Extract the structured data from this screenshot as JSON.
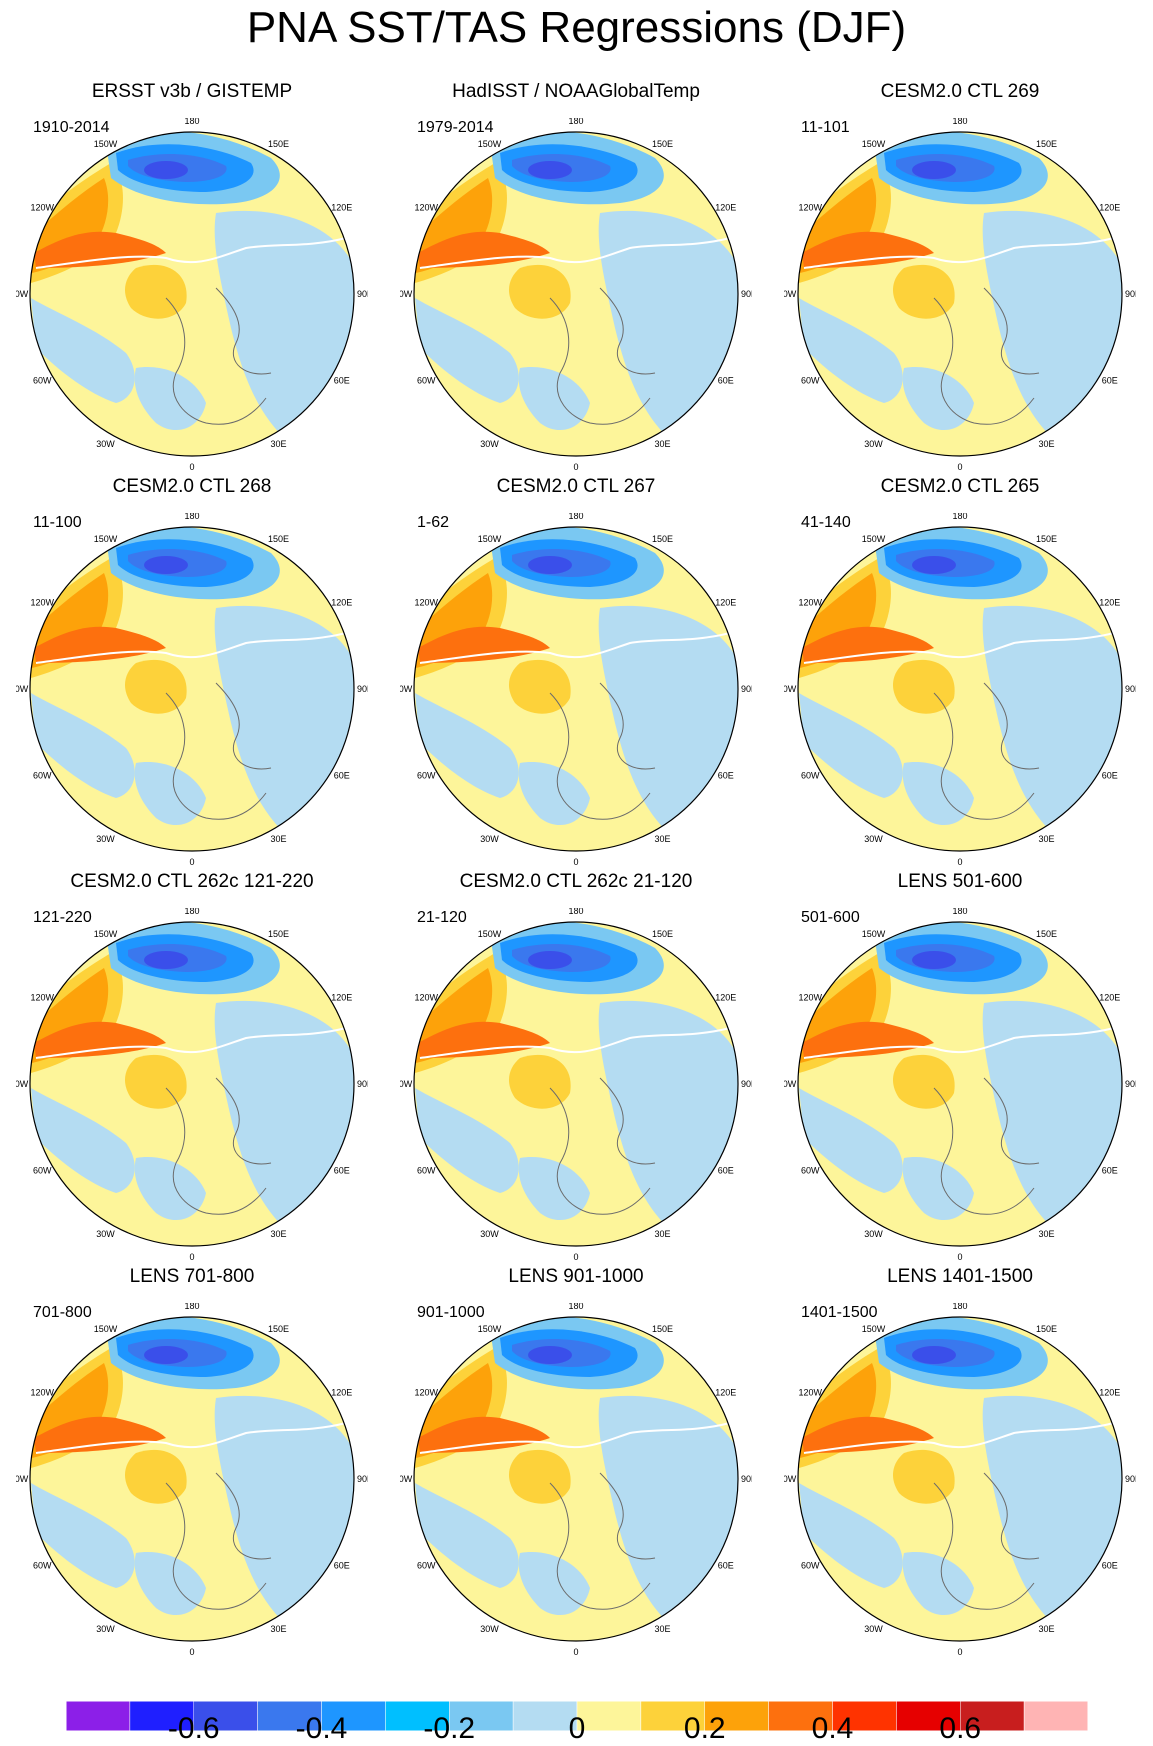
{
  "title": "PNA SST/TAS Regressions (DJF)",
  "longitude_labels": [
    "180",
    "150E",
    "120E",
    "90E",
    "60E",
    "30E",
    "0",
    "30W",
    "60W",
    "90W",
    "120W",
    "150W"
  ],
  "panels": [
    {
      "title": "ERSST v3b / GISTEMP",
      "period": "1910-2014"
    },
    {
      "title": "HadISST / NOAAGlobalTemp",
      "period": "1979-2014"
    },
    {
      "title": "CESM2.0 CTL 269",
      "period": "11-101"
    },
    {
      "title": "CESM2.0 CTL 268",
      "period": "11-100"
    },
    {
      "title": "CESM2.0 CTL 267",
      "period": "1-62"
    },
    {
      "title": "CESM2.0 CTL 265",
      "period": "41-140"
    },
    {
      "title": "CESM2.0 CTL 262c 121-220",
      "period": "121-220"
    },
    {
      "title": "CESM2.0 CTL 262c 21-120",
      "period": "21-120"
    },
    {
      "title": "LENS 501-600",
      "period": "501-600"
    },
    {
      "title": "LENS 701-800",
      "period": "701-800"
    },
    {
      "title": "LENS 901-1000",
      "period": "901-1000"
    },
    {
      "title": "LENS 1401-1500",
      "period": "1401-1500"
    }
  ],
  "colorbar": {
    "colors": [
      "#8c1fe8",
      "#1f1fff",
      "#3a4fea",
      "#3a78ee",
      "#1e96ff",
      "#00bfff",
      "#7ac8f2",
      "#b4dcf2",
      "#fdf59a",
      "#fdd23a",
      "#fda20a",
      "#fd700e",
      "#ff3300",
      "#e60000",
      "#c81e1e",
      "#ffb4b4"
    ],
    "labels": [
      "-0.6",
      "-0.4",
      "-0.2",
      "0",
      "0.2",
      "0.4",
      "0.6"
    ]
  },
  "map_colors": {
    "deep_blue": "#3a4fea",
    "mid_blue": "#3a78ee",
    "blue": "#1e96ff",
    "light_blue": "#7ac8f2",
    "pale_blue": "#b4dcf2",
    "pale_yellow": "#fdf59a",
    "yellow": "#fdd23a",
    "orange": "#fda20a",
    "dark_orange": "#fd700e",
    "red": "#ff3300"
  }
}
